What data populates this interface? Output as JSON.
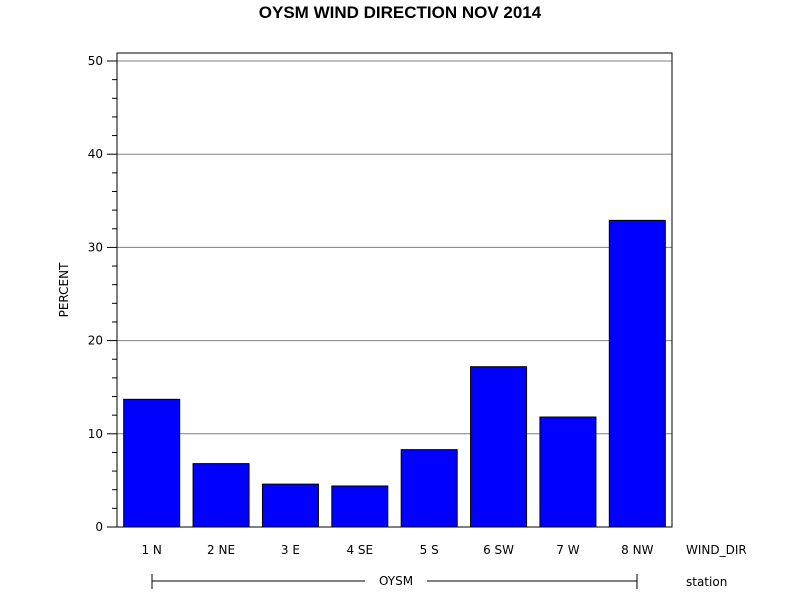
{
  "chart_data": {
    "type": "bar",
    "title": "OYSM WIND DIRECTION NOV 2014",
    "xlabel": "WIND_DIR",
    "ylabel": "PERCENT",
    "group_axis_label": "station",
    "group_name": "OYSM",
    "categories": [
      "1 N",
      "2 NE",
      "3 E",
      "4 SE",
      "5 S",
      "6 SW",
      "7 W",
      "8 NW"
    ],
    "values": [
      13.7,
      6.8,
      4.6,
      4.4,
      8.3,
      17.2,
      11.8,
      32.9
    ],
    "ylim": [
      0,
      50
    ],
    "yticks": [
      "0",
      "10",
      "20",
      "30",
      "40",
      "50"
    ],
    "grid": true,
    "bar_color": "#0000ff",
    "bar_edge_color": "#000000"
  }
}
